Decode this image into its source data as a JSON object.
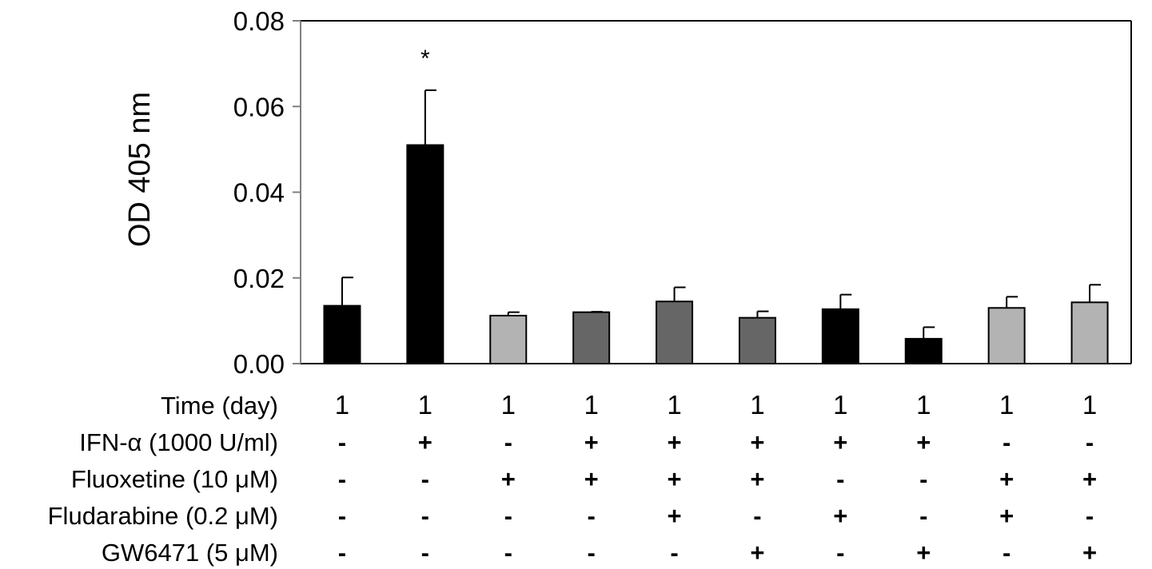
{
  "chart_data": {
    "type": "bar",
    "ylabel": "OD 405 nm",
    "ylim": [
      0,
      0.08
    ],
    "yticks": [
      "0.00",
      "0.02",
      "0.04",
      "0.06",
      "0.08"
    ],
    "grid": false,
    "colors": {
      "black": "#000000",
      "dark_gray": "#666666",
      "light_gray": "#b3b3b3",
      "axis": "#808080"
    },
    "bars": [
      {
        "value": 0.0135,
        "error": 0.0066,
        "color": "black"
      },
      {
        "value": 0.051,
        "error": 0.0128,
        "color": "black",
        "annotation": "*"
      },
      {
        "value": 0.0112,
        "error": 0.0008,
        "color": "light_gray"
      },
      {
        "value": 0.012,
        "error": 0.0001,
        "color": "dark_gray"
      },
      {
        "value": 0.0145,
        "error": 0.0033,
        "color": "dark_gray"
      },
      {
        "value": 0.0107,
        "error": 0.0015,
        "color": "dark_gray"
      },
      {
        "value": 0.0127,
        "error": 0.0034,
        "color": "black"
      },
      {
        "value": 0.0058,
        "error": 0.0027,
        "color": "black"
      },
      {
        "value": 0.013,
        "error": 0.0026,
        "color": "light_gray"
      },
      {
        "value": 0.0143,
        "error": 0.0041,
        "color": "light_gray"
      }
    ],
    "condition_table": [
      {
        "label": "Time (day)",
        "values": [
          "1",
          "1",
          "1",
          "1",
          "1",
          "1",
          "1",
          "1",
          "1",
          "1"
        ]
      },
      {
        "label": "IFN-α (1000 U/ml)",
        "values": [
          "-",
          "+",
          "-",
          "+",
          "+",
          "+",
          "+",
          "+",
          "-",
          "-"
        ]
      },
      {
        "label": "Fluoxetine (10 μM)",
        "values": [
          "-",
          "-",
          "+",
          "+",
          "+",
          "+",
          "-",
          "-",
          "+",
          "+"
        ]
      },
      {
        "label": "Fludarabine (0.2 μM)",
        "values": [
          "-",
          "-",
          "-",
          "-",
          "+",
          "-",
          "+",
          "-",
          "+",
          "-"
        ]
      },
      {
        "label": "GW6471 (5 μM)",
        "values": [
          "-",
          "-",
          "-",
          "-",
          "-",
          "+",
          "-",
          "+",
          "-",
          "+"
        ]
      }
    ]
  }
}
